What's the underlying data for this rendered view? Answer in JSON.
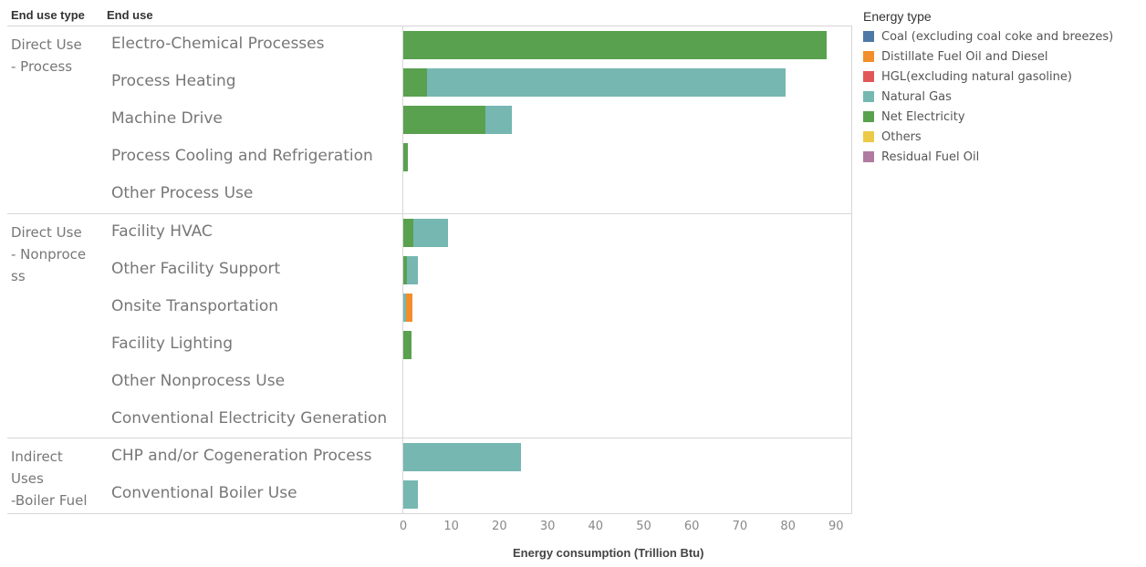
{
  "headers": {
    "end_use_type": "End use type",
    "end_use": "End use"
  },
  "groups": [
    {
      "label": "Direct Use - Process",
      "lines": [
        "Direct Use",
        "- Process"
      ]
    },
    {
      "label": "Direct Use - Nonprocess",
      "lines": [
        "Direct Use",
        "- Nonproce",
        "ss"
      ]
    },
    {
      "label": "Indirect Uses -Boiler Fuel",
      "lines": [
        "Indirect",
        "Uses",
        "-Boiler Fuel"
      ]
    }
  ],
  "legend": {
    "title": "Energy type",
    "items": [
      {
        "name": "Coal (excluding coal coke and breezes)",
        "color": "#4e79a7"
      },
      {
        "name": "Distillate Fuel Oil and Diesel",
        "color": "#f28e2b"
      },
      {
        "name": "HGL(excluding natural gasoline)",
        "color": "#e15759"
      },
      {
        "name": "Natural Gas",
        "color": "#76b7b2"
      },
      {
        "name": "Net Electricity",
        "color": "#59a14f"
      },
      {
        "name": "Others",
        "color": "#edc948"
      },
      {
        "name": "Residual Fuel Oil",
        "color": "#b07aa1"
      }
    ]
  },
  "chart_data": {
    "type": "bar",
    "orientation": "horizontal",
    "stacked": true,
    "xlabel": "Energy consumption (Trillion Btu)",
    "xlim": [
      0,
      93
    ],
    "xticks": [
      0,
      10,
      20,
      30,
      40,
      50,
      60,
      70,
      80,
      90
    ],
    "grid": false,
    "legend_position": "right",
    "categories": [
      {
        "group": "Direct Use - Process",
        "label": "Electro-Chemical Processes",
        "values": {
          "Net Electricity": 88
        }
      },
      {
        "group": "Direct Use - Process",
        "label": "Process Heating",
        "values": {
          "Net Electricity": 5,
          "Natural Gas": 74.5
        }
      },
      {
        "group": "Direct Use - Process",
        "label": "Machine Drive",
        "values": {
          "Net Electricity": 17,
          "Natural Gas": 5.5
        }
      },
      {
        "group": "Direct Use - Process",
        "label": "Process Cooling and Refrigeration",
        "values": {
          "Net Electricity": 1
        }
      },
      {
        "group": "Direct Use - Process",
        "label": "Other Process Use",
        "values": {}
      },
      {
        "group": "Direct Use - Nonprocess",
        "label": "Facility HVAC",
        "values": {
          "Net Electricity": 2,
          "Natural Gas": 7.3
        }
      },
      {
        "group": "Direct Use - Nonprocess",
        "label": "Other Facility Support",
        "values": {
          "Net Electricity": 0.8,
          "Natural Gas": 2.3
        }
      },
      {
        "group": "Direct Use - Nonprocess",
        "label": "Onsite Transportation",
        "values": {
          "Natural Gas": 0.6,
          "Distillate Fuel Oil and Diesel": 1.3
        }
      },
      {
        "group": "Direct Use - Nonprocess",
        "label": "Facility Lighting",
        "values": {
          "Net Electricity": 1.8
        }
      },
      {
        "group": "Direct Use - Nonprocess",
        "label": "Other Nonprocess Use",
        "values": {}
      },
      {
        "group": "Direct Use - Nonprocess",
        "label": "Conventional Electricity Generation",
        "values": {}
      },
      {
        "group": "Indirect Uses -Boiler Fuel",
        "label": "CHP and/or Cogeneration Process",
        "values": {
          "Natural Gas": 24.5
        }
      },
      {
        "group": "Indirect Uses -Boiler Fuel",
        "label": "Conventional Boiler Use",
        "values": {
          "Natural Gas": 3
        }
      }
    ],
    "stack_order": [
      "Net Electricity",
      "Natural Gas",
      "Distillate Fuel Oil and Diesel"
    ]
  }
}
